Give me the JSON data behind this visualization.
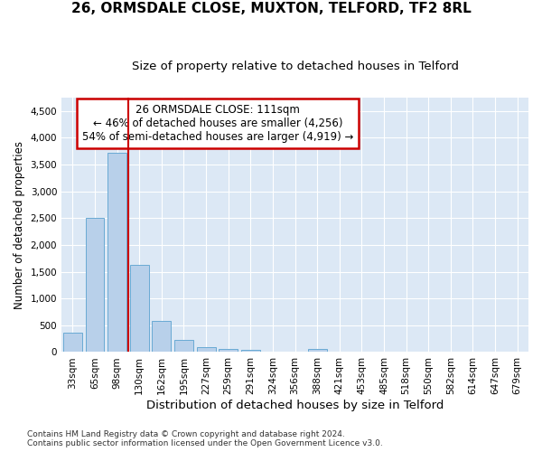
{
  "title": "26, ORMSDALE CLOSE, MUXTON, TELFORD, TF2 8RL",
  "subtitle": "Size of property relative to detached houses in Telford",
  "xlabel": "Distribution of detached houses by size in Telford",
  "ylabel": "Number of detached properties",
  "categories": [
    "33sqm",
    "65sqm",
    "98sqm",
    "130sqm",
    "162sqm",
    "195sqm",
    "227sqm",
    "259sqm",
    "291sqm",
    "324sqm",
    "356sqm",
    "388sqm",
    "421sqm",
    "453sqm",
    "485sqm",
    "518sqm",
    "550sqm",
    "582sqm",
    "614sqm",
    "647sqm",
    "679sqm"
  ],
  "values": [
    370,
    2500,
    3720,
    1630,
    590,
    230,
    100,
    60,
    40,
    0,
    0,
    50,
    0,
    0,
    0,
    0,
    0,
    0,
    0,
    0,
    0
  ],
  "bar_color": "#b8d0ea",
  "bar_edge_color": "#6aaad4",
  "vline_color": "#cc0000",
  "annotation_line1": "26 ORMSDALE CLOSE: 111sqm",
  "annotation_line2": "← 46% of detached houses are smaller (4,256)",
  "annotation_line3": "54% of semi-detached houses are larger (4,919) →",
  "annotation_box_color": "#cc0000",
  "annotation_facecolor": "white",
  "ylim": [
    0,
    4750
  ],
  "yticks": [
    0,
    500,
    1000,
    1500,
    2000,
    2500,
    3000,
    3500,
    4000,
    4500
  ],
  "background_color": "#dce8f5",
  "grid_color": "#ffffff",
  "footnote": "Contains HM Land Registry data © Crown copyright and database right 2024.\nContains public sector information licensed under the Open Government Licence v3.0.",
  "title_fontsize": 11,
  "subtitle_fontsize": 9.5,
  "xlabel_fontsize": 9.5,
  "ylabel_fontsize": 8.5,
  "tick_fontsize": 7.5,
  "annot_fontsize": 8.5,
  "footnote_fontsize": 6.5
}
